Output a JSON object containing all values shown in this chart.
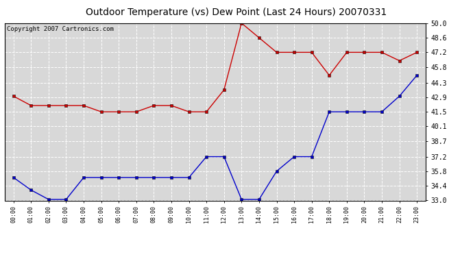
{
  "title": "Outdoor Temperature (vs) Dew Point (Last 24 Hours) 20070331",
  "copyright_text": "Copyright 2007 Cartronics.com",
  "x_labels": [
    "00:00",
    "01:00",
    "02:00",
    "03:00",
    "04:00",
    "05:00",
    "06:00",
    "07:00",
    "08:00",
    "09:00",
    "10:00",
    "11:00",
    "12:00",
    "13:00",
    "14:00",
    "15:00",
    "16:00",
    "17:00",
    "18:00",
    "19:00",
    "20:00",
    "21:00",
    "22:00",
    "23:00"
  ],
  "temp_data": [
    43.0,
    42.1,
    42.1,
    42.1,
    42.1,
    41.5,
    41.5,
    41.5,
    42.1,
    42.1,
    41.5,
    41.5,
    43.6,
    50.0,
    48.6,
    47.2,
    47.2,
    47.2,
    45.0,
    47.2,
    47.2,
    47.2,
    46.4,
    47.2
  ],
  "dew_data": [
    35.2,
    34.0,
    33.1,
    33.1,
    35.2,
    35.2,
    35.2,
    35.2,
    35.2,
    35.2,
    35.2,
    37.2,
    37.2,
    33.1,
    33.1,
    35.8,
    37.2,
    37.2,
    41.5,
    41.5,
    41.5,
    41.5,
    43.0,
    45.0
  ],
  "temp_color": "#cc0000",
  "dew_color": "#0000cc",
  "ylim_min": 33.0,
  "ylim_max": 50.0,
  "yticks": [
    33.0,
    34.4,
    35.8,
    37.2,
    38.7,
    40.1,
    41.5,
    42.9,
    44.3,
    45.8,
    47.2,
    48.6,
    50.0
  ],
  "background_color": "#ffffff",
  "plot_bg_color": "#d8d8d8",
  "grid_color": "#ffffff",
  "title_fontsize": 10,
  "copyright_fontsize": 6.5,
  "tick_fontsize": 7,
  "xtick_fontsize": 6
}
